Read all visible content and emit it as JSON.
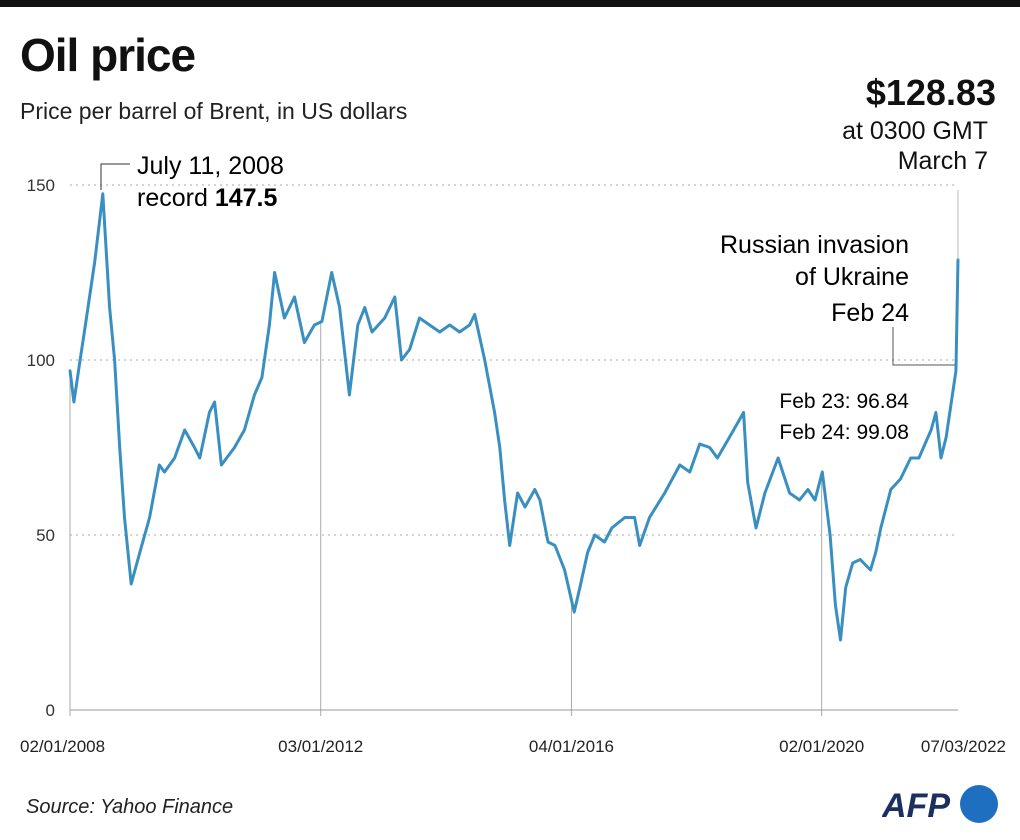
{
  "header": {
    "title": "Oil price",
    "subtitle": "Price per barrel of Brent, in US dollars",
    "latest_price": "$128.83",
    "latest_time": "at 0300 GMT",
    "latest_date": "March 7"
  },
  "footer": {
    "source": "Source: Yahoo Finance",
    "logo_text": "AFP"
  },
  "colors": {
    "line": "#3a8fc1",
    "grid": "#bbbbbb",
    "text": "#111111",
    "logo_dark": "#1c2f5e",
    "logo_blue": "#1f6fc1"
  },
  "chart_data": {
    "type": "line",
    "title": "Oil price",
    "subtitle": "Price per barrel of Brent, in US dollars",
    "xlabel": "",
    "ylabel": "",
    "ylim": [
      0,
      150
    ],
    "xlim": [
      "2008-01-02",
      "2022-03-07"
    ],
    "grid": true,
    "y_ticks": [
      "0",
      "50",
      "100",
      "150"
    ],
    "x_ticks": [
      {
        "date": "2008-01-02",
        "label": "02/01/2008"
      },
      {
        "date": "2012-01-03",
        "label": "03/01/2012"
      },
      {
        "date": "2016-01-04",
        "label": "04/01/2016"
      },
      {
        "date": "2020-01-02",
        "label": "02/01/2020"
      },
      {
        "date": "2022-03-07",
        "label": "07/03/2022"
      }
    ],
    "series": [
      {
        "points": [
          [
            "2008-01-02",
            97
          ],
          [
            "2008-01-25",
            88
          ],
          [
            "2008-03-01",
            100
          ],
          [
            "2008-04-01",
            110
          ],
          [
            "2008-05-25",
            128
          ],
          [
            "2008-07-11",
            147.5
          ],
          [
            "2008-08-20",
            115
          ],
          [
            "2008-09-18",
            100
          ],
          [
            "2008-10-18",
            75
          ],
          [
            "2008-11-15",
            55
          ],
          [
            "2008-12-24",
            36
          ],
          [
            "2009-02-12",
            45
          ],
          [
            "2009-04-10",
            55
          ],
          [
            "2009-06-06",
            70
          ],
          [
            "2009-07-06",
            68
          ],
          [
            "2009-09-03",
            72
          ],
          [
            "2009-11-01",
            80
          ],
          [
            "2009-12-28",
            75
          ],
          [
            "2010-01-28",
            72
          ],
          [
            "2010-03-25",
            85
          ],
          [
            "2010-04-24",
            88
          ],
          [
            "2010-06-03",
            70
          ],
          [
            "2010-08-18",
            75
          ],
          [
            "2010-10-15",
            80
          ],
          [
            "2010-12-12",
            90
          ],
          [
            "2011-01-25",
            95
          ],
          [
            "2011-03-10",
            110
          ],
          [
            "2011-04-09",
            125
          ],
          [
            "2011-06-05",
            112
          ],
          [
            "2011-08-03",
            118
          ],
          [
            "2011-09-30",
            105
          ],
          [
            "2011-11-27",
            110
          ],
          [
            "2012-01-10",
            111
          ],
          [
            "2012-03-07",
            125
          ],
          [
            "2012-04-22",
            115
          ],
          [
            "2012-06-18",
            90
          ],
          [
            "2012-08-06",
            110
          ],
          [
            "2012-09-16",
            115
          ],
          [
            "2012-10-28",
            108
          ],
          [
            "2013-01-10",
            112
          ],
          [
            "2013-03-10",
            118
          ],
          [
            "2013-04-18",
            100
          ],
          [
            "2013-06-04",
            103
          ],
          [
            "2013-08-01",
            112
          ],
          [
            "2013-09-29",
            110
          ],
          [
            "2013-11-27",
            108
          ],
          [
            "2014-01-24",
            110
          ],
          [
            "2014-03-23",
            108
          ],
          [
            "2014-05-20",
            110
          ],
          [
            "2014-06-19",
            113
          ],
          [
            "2014-08-16",
            100
          ],
          [
            "2014-10-13",
            85
          ],
          [
            "2014-11-12",
            75
          ],
          [
            "2014-12-10",
            60
          ],
          [
            "2015-01-09",
            47
          ],
          [
            "2015-02-24",
            62
          ],
          [
            "2015-04-08",
            58
          ],
          [
            "2015-06-04",
            63
          ],
          [
            "2015-07-04",
            60
          ],
          [
            "2015-08-20",
            48
          ],
          [
            "2015-09-30",
            47
          ],
          [
            "2015-11-25",
            40
          ],
          [
            "2016-01-20",
            28
          ],
          [
            "2016-02-22",
            35
          ],
          [
            "2016-04-07",
            45
          ],
          [
            "2016-05-19",
            50
          ],
          [
            "2016-07-15",
            48
          ],
          [
            "2016-08-26",
            52
          ],
          [
            "2016-11-10",
            55
          ],
          [
            "2017-01-06",
            55
          ],
          [
            "2017-02-05",
            47
          ],
          [
            "2017-04-03",
            55
          ],
          [
            "2017-07-01",
            62
          ],
          [
            "2017-09-27",
            70
          ],
          [
            "2017-11-24",
            68
          ],
          [
            "2018-01-21",
            76
          ],
          [
            "2018-03-20",
            75
          ],
          [
            "2018-05-04",
            72
          ],
          [
            "2018-07-14",
            78
          ],
          [
            "2018-10-04",
            85
          ],
          [
            "2018-10-28",
            65
          ],
          [
            "2018-12-15",
            52
          ],
          [
            "2019-02-05",
            62
          ],
          [
            "2019-04-23",
            72
          ],
          [
            "2019-06-29",
            62
          ],
          [
            "2019-08-26",
            60
          ],
          [
            "2019-10-14",
            63
          ],
          [
            "2019-11-24",
            60
          ],
          [
            "2020-01-06",
            68
          ],
          [
            "2020-02-20",
            50
          ],
          [
            "2020-03-22",
            30
          ],
          [
            "2020-04-21",
            20
          ],
          [
            "2020-05-21",
            35
          ],
          [
            "2020-07-01",
            42
          ],
          [
            "2020-08-14",
            43
          ],
          [
            "2020-10-13",
            40
          ],
          [
            "2020-11-12",
            45
          ],
          [
            "2020-12-12",
            52
          ],
          [
            "2021-02-08",
            63
          ],
          [
            "2021-04-06",
            66
          ],
          [
            "2021-06-04",
            72
          ],
          [
            "2021-07-22",
            72
          ],
          [
            "2021-10-01",
            80
          ],
          [
            "2021-10-29",
            85
          ],
          [
            "2021-11-28",
            72
          ],
          [
            "2021-12-28",
            78
          ],
          [
            "2022-02-08",
            92
          ],
          [
            "2022-02-23",
            96.84
          ],
          [
            "2022-02-24",
            99.08
          ],
          [
            "2022-03-07",
            128.83
          ]
        ]
      }
    ],
    "annotations": {
      "record_date": "July 11, 2008",
      "record_prefix": "record",
      "record_value": "147.5",
      "invasion_line1": "Russian invasion",
      "invasion_line2": "of Ukraine",
      "invasion_line3": "Feb 24",
      "feb23": "Feb 23: 96.84",
      "feb24": "Feb 24: 99.08"
    }
  }
}
